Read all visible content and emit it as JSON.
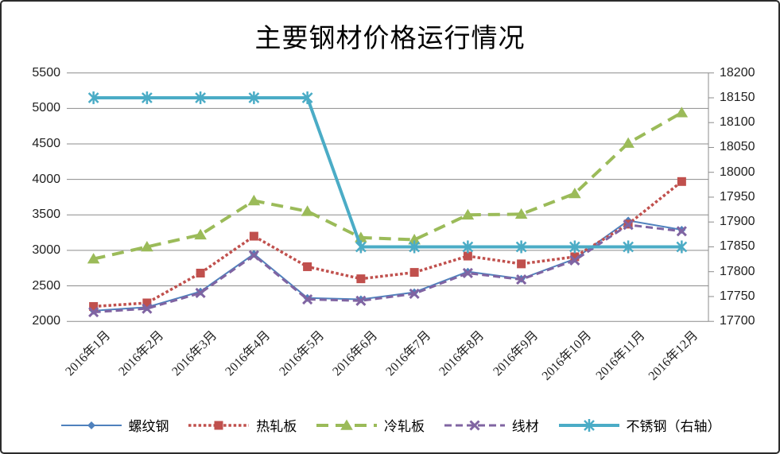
{
  "chart_data": {
    "type": "line",
    "title": "主要钢材价格运行情况",
    "categories": [
      "2016年1月",
      "2016年2月",
      "2016年3月",
      "2016年4月",
      "2016年5月",
      "2016年6月",
      "2016年7月",
      "2016年8月",
      "2016年9月",
      "2016年10月",
      "2016年11月",
      "2016年12月"
    ],
    "series": [
      {
        "name": "螺纹钢",
        "axis": "left",
        "color": "#4F81BD",
        "line": "solid",
        "marker": "diamond",
        "values": [
          2150,
          2200,
          2420,
          2950,
          2330,
          2310,
          2410,
          2700,
          2600,
          2880,
          3420,
          3290
        ]
      },
      {
        "name": "热轧板",
        "axis": "left",
        "color": "#C0504D",
        "line": "dotted",
        "marker": "square",
        "values": [
          2210,
          2260,
          2680,
          3200,
          2770,
          2600,
          2690,
          2920,
          2810,
          2910,
          3370,
          3970
        ]
      },
      {
        "name": "冷轧板",
        "axis": "left",
        "color": "#9BBB59",
        "line": "long-dash",
        "marker": "triangle",
        "values": [
          2880,
          3050,
          3220,
          3700,
          3550,
          3180,
          3150,
          3500,
          3510,
          3800,
          4510,
          4940
        ]
      },
      {
        "name": "线材",
        "axis": "left",
        "color": "#8064A2",
        "line": "dashed",
        "marker": "x",
        "values": [
          2130,
          2180,
          2400,
          2930,
          2310,
          2290,
          2390,
          2680,
          2590,
          2860,
          3360,
          3270
        ]
      },
      {
        "name": "不锈钢（右轴）",
        "axis": "right",
        "color": "#4BACC6",
        "line": "solid",
        "marker": "asterisk",
        "values": [
          18150,
          18150,
          18150,
          18150,
          18150,
          17850,
          17850,
          17850,
          17850,
          17850,
          17850,
          17850
        ]
      }
    ],
    "left_axis": {
      "min": 2000,
      "max": 5500,
      "step": 500,
      "ticks": [
        2000,
        2500,
        3000,
        3500,
        4000,
        4500,
        5000,
        5500
      ]
    },
    "right_axis": {
      "min": 17700,
      "max": 18200,
      "step": 50,
      "ticks": [
        17700,
        17750,
        17800,
        17850,
        17900,
        17950,
        18000,
        18050,
        18100,
        18150,
        18200
      ]
    },
    "grid": true,
    "gridline_color": "#8C8C8C",
    "legend_position": "bottom"
  }
}
